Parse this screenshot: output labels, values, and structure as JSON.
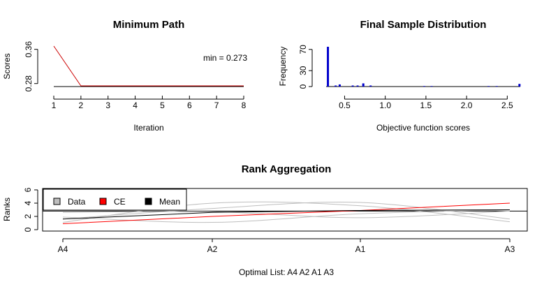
{
  "chart_data": [
    {
      "type": "line",
      "title": "Minimum Path",
      "xlabel": "Iteration",
      "ylabel": "Scores",
      "x": [
        1,
        2,
        3,
        4,
        5,
        6,
        7,
        8
      ],
      "values": [
        0.366,
        0.273,
        0.273,
        0.273,
        0.273,
        0.273,
        0.273,
        0.273
      ],
      "xticks": [
        "1",
        "2",
        "3",
        "4",
        "5",
        "6",
        "7",
        "8"
      ],
      "yticks": [
        "0.28",
        "0.36"
      ],
      "ylim": [
        0.273,
        0.366
      ],
      "xlim": [
        1,
        8
      ],
      "annotation": "min = 0.273",
      "line_color": "#cc0000",
      "reference_line_color": "#000000"
    },
    {
      "type": "bar",
      "title": "Final Sample Distribution",
      "xlabel": "Objective function scores",
      "ylabel": "Frequency",
      "xticks": [
        "0.5",
        "1.0",
        "1.5",
        "2.0",
        "2.5"
      ],
      "yticks": [
        "0",
        "30",
        "70"
      ],
      "xlim": [
        0.273,
        2.66
      ],
      "ylim": [
        0,
        75
      ],
      "bars": [
        {
          "x": 0.295,
          "value": 75
        },
        {
          "x": 0.39,
          "value": 2
        },
        {
          "x": 0.44,
          "value": 4
        },
        {
          "x": 0.6,
          "value": 2
        },
        {
          "x": 0.66,
          "value": 2
        },
        {
          "x": 0.73,
          "value": 6
        },
        {
          "x": 0.82,
          "value": 2
        },
        {
          "x": 1.48,
          "value": 1
        },
        {
          "x": 1.57,
          "value": 1
        },
        {
          "x": 2.27,
          "value": 1
        },
        {
          "x": 2.37,
          "value": 1
        },
        {
          "x": 2.65,
          "value": 5
        }
      ],
      "bar_color": "#0000cc"
    },
    {
      "type": "line",
      "title": "Rank Aggregation",
      "xlabel": "Optimal List: A4 A2 A1 A3",
      "ylabel": "Ranks",
      "categories": [
        "A4",
        "A2",
        "A1",
        "A3"
      ],
      "yticks": [
        "0",
        "2",
        "4",
        "6"
      ],
      "ylim": [
        0,
        6
      ],
      "legend": {
        "placement": "top-left",
        "entries": [
          {
            "label": "Data",
            "color": "#bebebe"
          },
          {
            "label": "CE",
            "color": "#ff0000"
          },
          {
            "label": "Mean",
            "color": "#000000"
          }
        ]
      },
      "series": [
        {
          "values": [
            1.1,
            4.0,
            3.6,
            1.2
          ],
          "color": "#bebebe"
        },
        {
          "values": [
            1.6,
            3.2,
            4.1,
            1.6
          ],
          "color": "#bebebe"
        },
        {
          "values": [
            1.9,
            1.1,
            2.4,
            3.0
          ],
          "color": "#bebebe"
        },
        {
          "values": [
            2.6,
            2.7,
            1.8,
            2.8
          ],
          "color": "#bebebe"
        },
        {
          "values": [
            0.9,
            2.0,
            2.9,
            4.0
          ],
          "color": "#ff0000"
        },
        {
          "values": [
            1.6,
            2.6,
            2.9,
            3.0
          ],
          "color": "#000000"
        }
      ],
      "hline": 2.8
    }
  ]
}
